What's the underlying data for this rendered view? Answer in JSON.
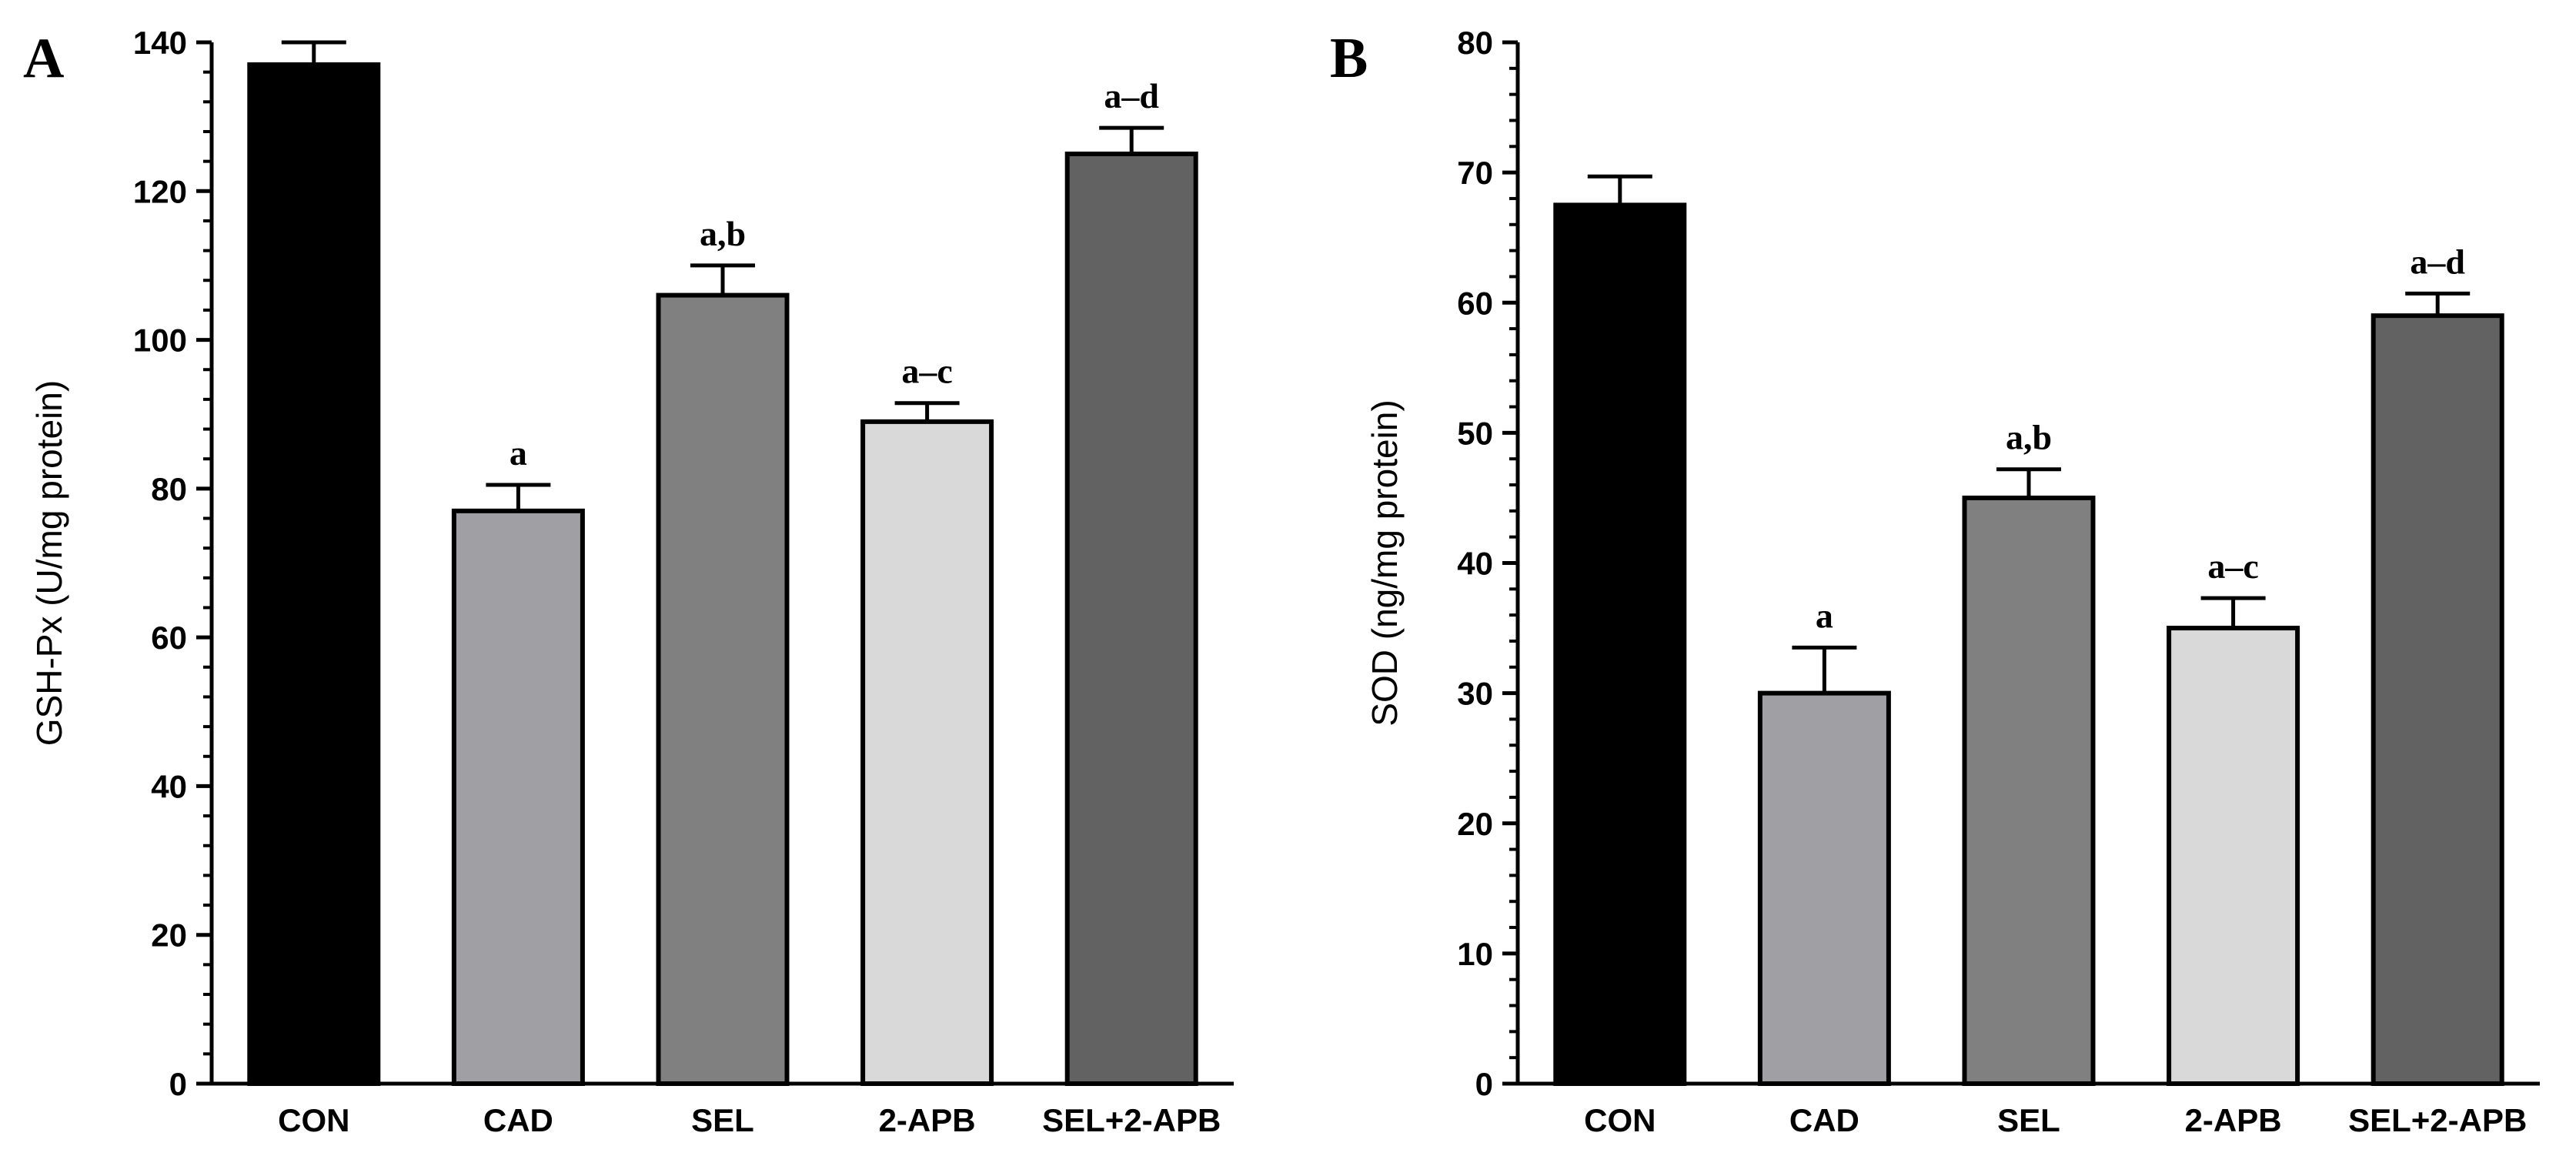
{
  "chart_data": [
    {
      "panel": "A",
      "type": "bar",
      "ylabel": "GSH-Px (U/mg protein)",
      "ylim": [
        0,
        140
      ],
      "yticks": [
        0,
        20,
        40,
        60,
        80,
        100,
        120,
        140
      ],
      "ytick_labels": [
        "0",
        "20",
        "40",
        "60",
        "80",
        "100",
        "120",
        "140"
      ],
      "categories": [
        "CON",
        "CAD",
        "SEL",
        "2-APB",
        "SEL+2-APB"
      ],
      "values": [
        137,
        77,
        106,
        89,
        125
      ],
      "errors": [
        3,
        3.5,
        4,
        2.5,
        3.5
      ],
      "annotations": [
        "",
        "a",
        "a,b",
        "a–c",
        "a–d"
      ],
      "colors": [
        "#000000",
        "#a0a0a4",
        "#808080",
        "#d9d9d9",
        "#626262"
      ]
    },
    {
      "panel": "B",
      "type": "bar",
      "ylabel": "SOD (ng/mg protein)",
      "ylim": [
        0,
        80
      ],
      "yticks": [
        0,
        10,
        20,
        30,
        40,
        50,
        60,
        70,
        80
      ],
      "ytick_labels": [
        "0",
        "10",
        "20",
        "30",
        "40",
        "50",
        "60",
        "70",
        "80"
      ],
      "categories": [
        "CON",
        "CAD",
        "SEL",
        "2-APB",
        "SEL+2-APB"
      ],
      "values": [
        67.5,
        30,
        45,
        35,
        59
      ],
      "errors": [
        2.2,
        3.5,
        2.2,
        2.3,
        1.7
      ],
      "annotations": [
        "",
        "a",
        "a,b",
        "a–c",
        "a–d"
      ],
      "colors": [
        "#000000",
        "#a0a0a4",
        "#808080",
        "#d9d9d9",
        "#626262"
      ]
    }
  ]
}
